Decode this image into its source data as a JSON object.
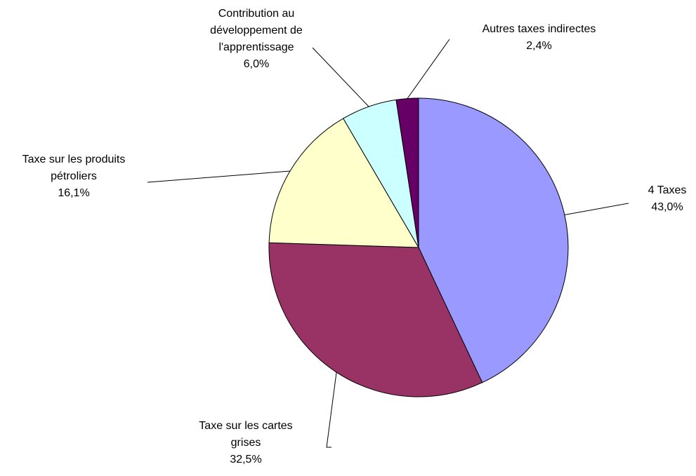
{
  "chart_data": {
    "type": "pie",
    "categories": [
      "4 Taxes",
      "Taxe sur les cartes grises",
      "Taxe sur les produits pétroliers",
      "Contribution au développement de l'apprentissage",
      "Autres taxes indirectes"
    ],
    "values": [
      43.0,
      32.5,
      16.1,
      6.0,
      2.4
    ],
    "value_labels": [
      "43,0%",
      "32,5%",
      "16,1%",
      "6,0%",
      "2,4%"
    ],
    "colors": [
      "#9999ff",
      "#993366",
      "#ffffcc",
      "#ccffff",
      "#660066"
    ]
  }
}
